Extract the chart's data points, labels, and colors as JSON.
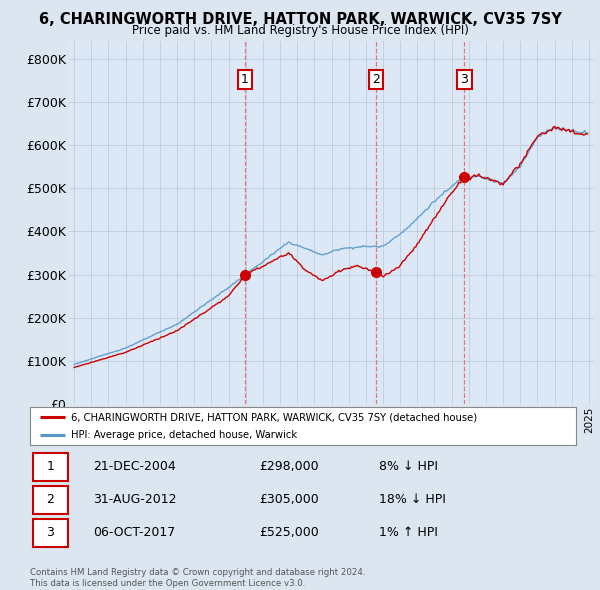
{
  "title": "6, CHARINGWORTH DRIVE, HATTON PARK, WARWICK, CV35 7SY",
  "subtitle": "Price paid vs. HM Land Registry's House Price Index (HPI)",
  "ylabel_ticks": [
    "£0",
    "£100K",
    "£200K",
    "£300K",
    "£400K",
    "£500K",
    "£600K",
    "£700K",
    "£800K"
  ],
  "ytick_values": [
    0,
    100000,
    200000,
    300000,
    400000,
    500000,
    600000,
    700000,
    800000
  ],
  "ylim": [
    0,
    840000
  ],
  "red_line_color": "#cc0000",
  "blue_line_color": "#5599cc",
  "dashed_vline_color": "#ee4444",
  "background_color": "#dce6f0",
  "plot_bg_color": "#dce8f5",
  "purchase_years_float": [
    2004.958,
    2012.583,
    2017.75
  ],
  "purchase_prices": [
    298000,
    305000,
    525000
  ],
  "purchase_labels": [
    "1",
    "2",
    "3"
  ],
  "table_data": [
    [
      "1",
      "21-DEC-2004",
      "£298,000",
      "8% ↓ HPI"
    ],
    [
      "2",
      "31-AUG-2012",
      "£305,000",
      "18% ↓ HPI"
    ],
    [
      "3",
      "06-OCT-2017",
      "£525,000",
      "1% ↑ HPI"
    ]
  ],
  "legend_line1": "6, CHARINGWORTH DRIVE, HATTON PARK, WARWICK, CV35 7SY (detached house)",
  "legend_line2": "HPI: Average price, detached house, Warwick",
  "footer": "Contains HM Land Registry data © Crown copyright and database right 2024.\nThis data is licensed under the Open Government Licence v3.0.",
  "xstart_year": 1995,
  "xend_year": 2025
}
